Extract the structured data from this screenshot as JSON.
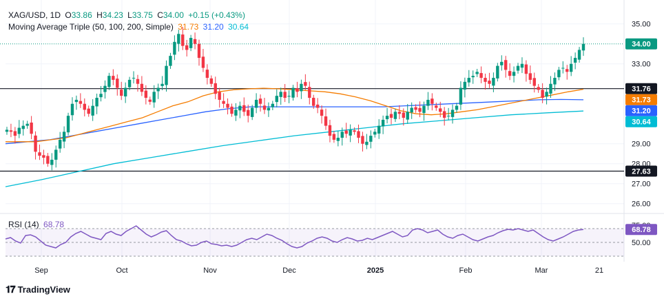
{
  "header": {
    "symbol": "XAG/USD, 1D",
    "o_label": "O",
    "o": "33.86",
    "h_label": "H",
    "h": "34.23",
    "l_label": "L",
    "l": "33.75",
    "c_label": "C",
    "c": "34.00",
    "change": "+0.15 (+0.43%)"
  },
  "ma_legend": {
    "name": "Moving Average Triple (50, 100, 200, Simple)",
    "v50": "31.73",
    "v100": "31.20",
    "v200": "30.64"
  },
  "rsi_legend": {
    "name": "RSI (14)",
    "value": "68.78"
  },
  "brand": "TradingView",
  "colors": {
    "up": "#089981",
    "down": "#f23645",
    "ma50": "#f57c00",
    "ma100": "#2962ff",
    "ma200": "#00bcd4",
    "rsi": "#7e57c2",
    "hline": "#131722",
    "grid": "#f0f3fa"
  },
  "chart_data": {
    "type": "candlestick",
    "price_axis": {
      "ticks": [
        "35.00",
        "33.00",
        "29.00",
        "28.00",
        "27.00",
        "26.00"
      ],
      "range": [
        25.5,
        35.6
      ]
    },
    "time_axis": {
      "labels": [
        "Sep",
        "Oct",
        "Nov",
        "Dec",
        "2025",
        "Feb",
        "Mar"
      ],
      "cursor_label": "21"
    },
    "horizontal_levels": [
      31.76,
      27.63
    ],
    "last_price": 34.0,
    "price_badges": [
      {
        "value": "34.00",
        "price": 34.0,
        "color": "#089981"
      },
      {
        "value": "31.76",
        "price": 31.76,
        "color": "#131722"
      },
      {
        "value": "31.73",
        "price": 31.73,
        "color": "#f57c00"
      },
      {
        "value": "31.20",
        "price": 31.2,
        "color": "#2962ff"
      },
      {
        "value": "30.64",
        "price": 30.64,
        "color": "#00bcd4"
      },
      {
        "value": "27.63",
        "price": 27.63,
        "color": "#131722"
      }
    ],
    "close_path": [
      29.7,
      29.6,
      29.4,
      29.8,
      29.9,
      30.0,
      29.5,
      28.6,
      28.4,
      28.3,
      28.0,
      28.2,
      28.7,
      29.2,
      29.6,
      30.4,
      31.0,
      31.2,
      31.0,
      30.7,
      30.5,
      30.9,
      31.3,
      31.5,
      31.9,
      32.4,
      32.2,
      31.8,
      31.4,
      31.8,
      32.2,
      32.3,
      32.0,
      31.6,
      31.3,
      31.1,
      31.6,
      31.8,
      32.0,
      32.9,
      33.4,
      34.1,
      34.5,
      33.9,
      33.7,
      34.3,
      34.0,
      33.3,
      32.8,
      32.3,
      32.0,
      31.5,
      31.2,
      31.0,
      30.8,
      30.5,
      30.7,
      30.9,
      30.6,
      30.4,
      30.8,
      31.2,
      31.0,
      30.7,
      30.8,
      31.0,
      31.4,
      31.6,
      31.3,
      31.4,
      31.8,
      31.6,
      32.0,
      31.9,
      31.3,
      30.9,
      30.8,
      30.4,
      29.9,
      29.4,
      29.2,
      29.3,
      29.6,
      29.5,
      29.7,
      29.6,
      29.3,
      29.0,
      29.1,
      29.4,
      29.6,
      29.9,
      30.2,
      30.4,
      30.3,
      30.6,
      30.5,
      30.3,
      30.6,
      30.8,
      30.7,
      30.6,
      30.9,
      31.2,
      31.0,
      30.8,
      30.6,
      30.3,
      30.4,
      30.7,
      30.9,
      31.8,
      32.1,
      32.3,
      32.4,
      32.6,
      32.3,
      32.1,
      32.0,
      32.3,
      32.9,
      33.1,
      32.7,
      32.4,
      32.6,
      32.9,
      33.0,
      32.5,
      32.2,
      31.9,
      31.7,
      31.3,
      31.6,
      32.0,
      32.3,
      32.7,
      32.8,
      32.6,
      33.0,
      33.3,
      33.7,
      34.0
    ],
    "ma50_path": [
      29.1,
      29.1,
      29.1,
      29.2,
      29.3,
      29.5,
      29.7,
      29.9,
      30.1,
      30.3,
      30.6,
      30.9,
      31.1,
      31.4,
      31.6,
      31.7,
      31.75,
      31.78,
      31.75,
      31.7,
      31.65,
      31.6,
      31.5,
      31.35,
      31.15,
      30.9,
      30.65,
      30.5,
      30.45,
      30.5,
      30.6,
      30.7,
      30.85,
      31.0,
      31.15,
      31.3,
      31.45,
      31.6,
      31.73
    ],
    "ma100_path": [
      29.0,
      29.1,
      29.2,
      29.4,
      29.6,
      29.8,
      30.0,
      30.2,
      30.4,
      30.6,
      30.75,
      30.85,
      30.85,
      30.85,
      30.85,
      30.85,
      30.85,
      30.85,
      30.9,
      30.95,
      31.0,
      31.05,
      31.1,
      31.15,
      31.2,
      31.22,
      31.2
    ],
    "ma200_path": [
      26.85,
      27.2,
      27.6,
      28.0,
      28.3,
      28.6,
      28.9,
      29.15,
      29.4,
      29.6,
      29.8,
      30.0,
      30.15,
      30.3,
      30.45,
      30.55,
      30.64
    ],
    "rsi": {
      "levels": [
        70,
        50,
        30
      ],
      "tick_labels": [
        "75.00",
        "50.00"
      ],
      "range": [
        30,
        80
      ],
      "path": [
        55,
        57,
        52,
        49,
        60,
        61,
        58,
        52,
        46,
        44,
        42,
        47,
        50,
        58,
        63,
        66,
        62,
        58,
        56,
        54,
        63,
        66,
        62,
        60,
        66,
        70,
        74,
        68,
        62,
        58,
        61,
        65,
        67,
        60,
        54,
        52,
        48,
        45,
        46,
        50,
        52,
        48,
        47,
        45,
        46,
        44,
        46,
        50,
        54,
        56,
        54,
        58,
        62,
        60,
        56,
        53,
        48,
        44,
        42,
        44,
        49,
        52,
        56,
        58,
        56,
        52,
        50,
        54,
        57,
        55,
        52,
        53,
        56,
        54,
        57,
        60,
        63,
        66,
        62,
        58,
        60,
        68,
        70,
        68,
        64,
        66,
        68,
        62,
        58,
        56,
        60,
        62,
        58,
        54,
        52,
        55,
        58,
        60,
        64,
        67,
        69,
        68,
        70,
        68,
        66,
        68,
        63,
        58,
        54,
        52,
        55,
        58,
        62,
        66,
        68,
        68.78
      ]
    }
  }
}
